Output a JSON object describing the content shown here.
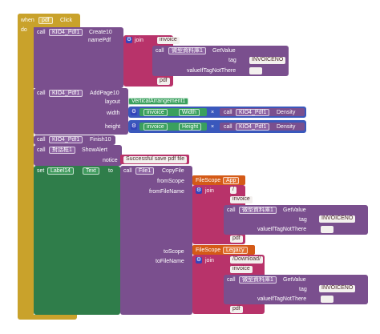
{
  "event": {
    "when": "when",
    "component": "pdf",
    "event": "Click",
    "do": "do"
  },
  "call1": {
    "call": "call",
    "component": "KIO4_Pdf1",
    "method": "Create10",
    "param": "namePdf"
  },
  "join1": {
    "label": "join",
    "s1": "invoice",
    "s2": "pdf"
  },
  "dict1": {
    "call": "call",
    "component": "微型資料庫1",
    "method": "GetValue",
    "tag_label": "tag",
    "tag_value": "INVOICENO",
    "vitnt_label": "valueIfTagNotThere",
    "vitnt_value": ""
  },
  "call2": {
    "call": "call",
    "component": "KIO4_Pdf1",
    "method": "AddPage10",
    "layout_label": "layout",
    "layout_value": "VerticalArrangement1",
    "width_label": "width",
    "height_label": "height"
  },
  "mult1": {
    "component": "invoice",
    "prop": "Width",
    "op": "×",
    "call": "call",
    "comp2": "KIO4_Pdf1",
    "prop2": "Density"
  },
  "mult2": {
    "component": "invoice",
    "prop": "Height",
    "op": "×",
    "call": "call",
    "comp2": "KIO4_Pdf1",
    "prop2": "Density"
  },
  "call3": {
    "call": "call",
    "component": "KIO4_Pdf1",
    "method": "Finish10"
  },
  "call4": {
    "call": "call",
    "component": "對話框1",
    "method": "ShowAlert",
    "param": "notice",
    "notice_value": "Successful save pdf file"
  },
  "set1": {
    "set": "set",
    "component": "Label14",
    "prop": "Text",
    "to": "to"
  },
  "call5": {
    "call": "call",
    "component": "File1",
    "method": "CopyFile",
    "fromScope": "fromScope",
    "fromFileName": "fromFileName",
    "toScope": "toScope",
    "toFileName": "toFileName"
  },
  "scope1": {
    "label": "FileScope",
    "value": "App"
  },
  "scope2": {
    "label": "FileScope",
    "value": "Legacy"
  },
  "join2": {
    "label": "join",
    "s1": "/",
    "s2": "invoice",
    "s3": "pdf"
  },
  "join3": {
    "label": "join",
    "s1": "/Download/",
    "s2": "invoice",
    "s3": "pdf"
  },
  "dict2": {
    "call": "call",
    "component": "微型資料庫1",
    "method": "GetValue",
    "tag_label": "tag",
    "tag_value": "INVOICENO",
    "vitnt_label": "valueIfTagNotThere",
    "vitnt_value": ""
  },
  "dict3": {
    "call": "call",
    "component": "微型資料庫1",
    "method": "GetValue",
    "tag_label": "tag",
    "tag_value": "INVOICENO",
    "vitnt_label": "valueIfTagNotThere",
    "vitnt_value": ""
  },
  "colors": {
    "event": "#c9a22b",
    "procedure": "#7a4f8e",
    "text": "#b8336a",
    "math": "#3a58bc",
    "layout": "#3aa05e",
    "set": "#2f7d4a",
    "filescope": "#d45a17"
  }
}
